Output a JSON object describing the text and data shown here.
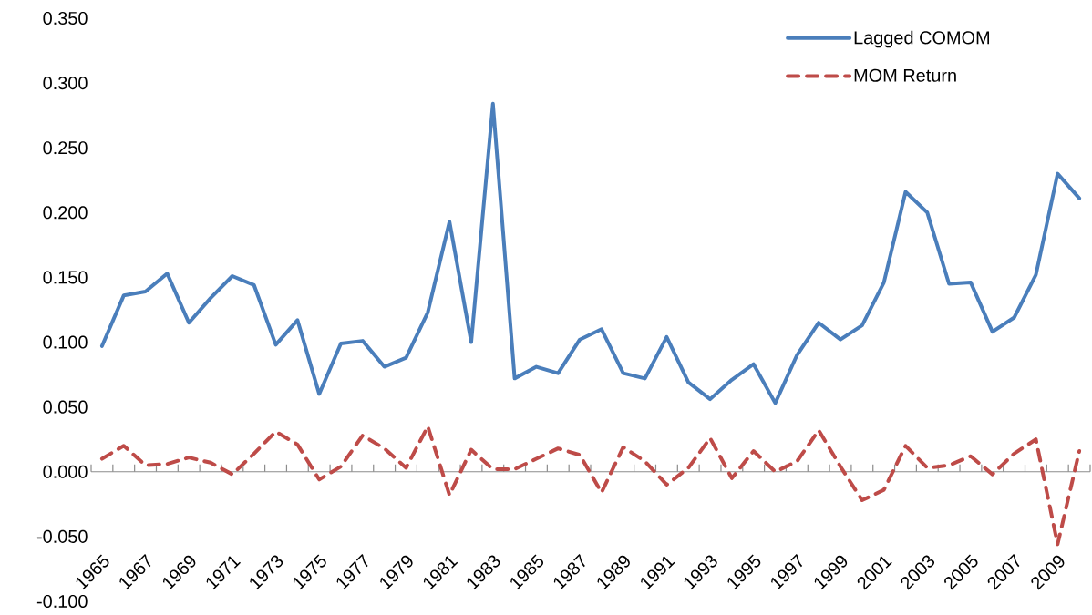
{
  "chart_data": {
    "type": "line",
    "categories": [
      "1965",
      null,
      "1967",
      null,
      "1969",
      null,
      "1971",
      null,
      "1973",
      null,
      "1975",
      null,
      "1977",
      null,
      "1979",
      null,
      "1981",
      null,
      "1983",
      null,
      "1985",
      null,
      "1987",
      null,
      "1989",
      null,
      "1991",
      null,
      "1993",
      null,
      "1995",
      null,
      "1997",
      null,
      "1999",
      null,
      "2001",
      null,
      "2003",
      null,
      "2005",
      null,
      "2007",
      null,
      "2009",
      null
    ],
    "series": [
      {
        "name": "Lagged COMOM",
        "color": "#4a7ebb",
        "line_style": "solid",
        "values": [
          0.097,
          0.136,
          0.139,
          0.153,
          0.115,
          0.134,
          0.151,
          0.144,
          0.098,
          0.117,
          0.06,
          0.099,
          0.101,
          0.081,
          0.088,
          0.123,
          0.193,
          0.1,
          0.284,
          0.072,
          0.081,
          0.076,
          0.102,
          0.11,
          0.076,
          0.072,
          0.104,
          0.069,
          0.056,
          0.071,
          0.083,
          0.053,
          0.09,
          0.115,
          0.102,
          0.113,
          0.146,
          0.216,
          0.2,
          0.145,
          0.146,
          0.108,
          0.119,
          0.152,
          0.23,
          0.211
        ]
      },
      {
        "name": "MOM Return",
        "color": "#be4b48",
        "line_style": "dashed",
        "values": [
          0.01,
          0.02,
          0.005,
          0.006,
          0.011,
          0.007,
          -0.002,
          0.014,
          0.031,
          0.021,
          -0.006,
          0.004,
          0.028,
          0.018,
          0.003,
          0.035,
          -0.018,
          0.017,
          0.002,
          0.002,
          0.01,
          0.018,
          0.013,
          -0.016,
          0.019,
          0.008,
          -0.01,
          0.003,
          0.026,
          -0.005,
          0.016,
          0.0,
          0.008,
          0.032,
          0.004,
          -0.022,
          -0.014,
          0.02,
          0.003,
          0.005,
          0.012,
          -0.002,
          0.014,
          0.025,
          -0.056,
          0.016
        ]
      }
    ],
    "ylim": [
      -0.1,
      0.35
    ],
    "yticks": [
      {
        "value": -0.1,
        "label": "-0.100"
      },
      {
        "value": -0.05,
        "label": "-0.050"
      },
      {
        "value": 0,
        "label": "0.000"
      },
      {
        "value": 0.05,
        "label": "0.050"
      },
      {
        "value": 0.1,
        "label": "0.100"
      },
      {
        "value": 0.15,
        "label": "0.150"
      },
      {
        "value": 0.2,
        "label": "0.200"
      },
      {
        "value": 0.25,
        "label": "0.250"
      },
      {
        "value": 0.3,
        "label": "0.300"
      },
      {
        "value": 0.35,
        "label": "0.350"
      }
    ],
    "legend": "top right"
  }
}
